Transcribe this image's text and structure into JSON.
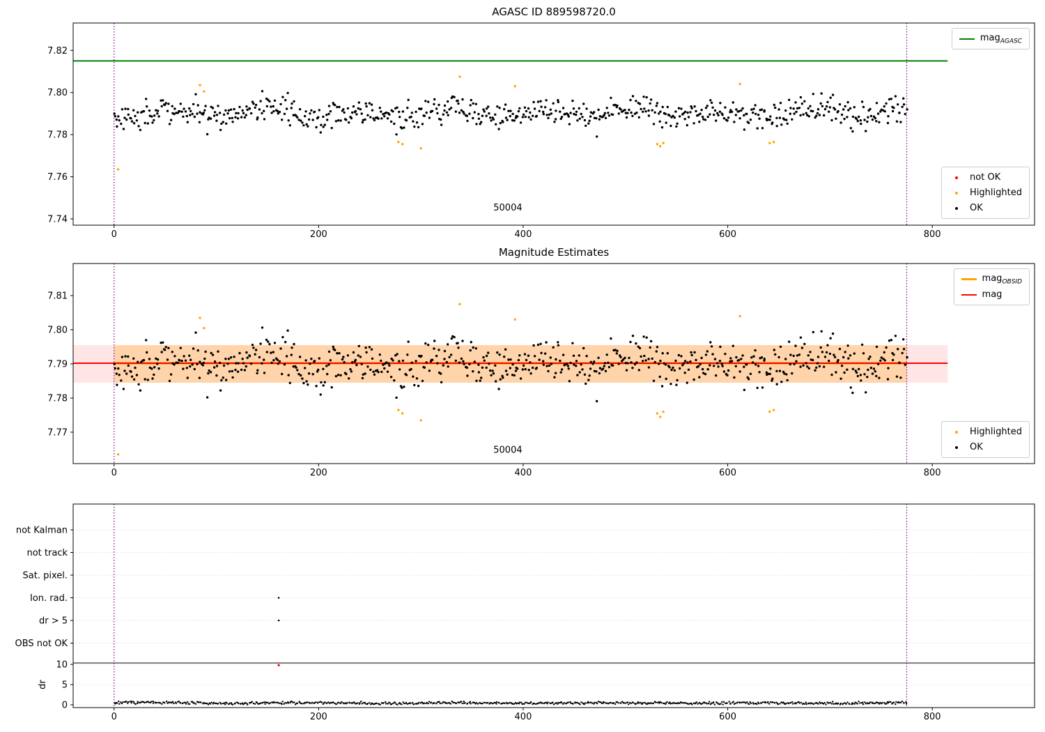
{
  "figure_title": "AGASC ID 889598720.0",
  "chart_data": [
    {
      "id": "agasc-mag",
      "type": "scatter",
      "title": "AGASC ID 889598720.0",
      "xlim": [
        -40,
        900
      ],
      "xticks": [
        0,
        200,
        400,
        600,
        800
      ],
      "ylim": [
        7.737,
        7.833
      ],
      "yticks": [
        7.74,
        7.76,
        7.78,
        7.8,
        7.82
      ],
      "ytick_labels": [
        "7.74",
        "7.76",
        "7.78",
        "7.80",
        "7.82"
      ],
      "annotation": {
        "text": "50004",
        "x": 385,
        "y": 7.744
      },
      "hlines": [
        {
          "name": "mag-agasc",
          "value": 7.815,
          "color": "#008000",
          "width": 2,
          "x_span": [
            -40,
            815
          ]
        }
      ],
      "vlines": {
        "xs": [
          0,
          775
        ],
        "color": "#800080"
      },
      "series": [
        {
          "name": "OK",
          "marker": "dot",
          "color": "#000000",
          "gen": {
            "n": 700,
            "x0": 0,
            "x1": 775,
            "mean": 7.7902,
            "noise": 0.0032,
            "wave_amp": 0.0018,
            "wave_period": 90,
            "seed": 42,
            "clamp": 0.017
          }
        },
        {
          "name": "Highlighted",
          "marker": "dot",
          "color": "#ffa500",
          "points": [
            [
              4,
              7.7635
            ],
            [
              84,
              7.8035
            ],
            [
              88,
              7.8005
            ],
            [
              278,
              7.7765
            ],
            [
              282,
              7.7755
            ],
            [
              300,
              7.7735
            ],
            [
              338,
              7.8075
            ],
            [
              392,
              7.803
            ],
            [
              531,
              7.7755
            ],
            [
              534,
              7.7745
            ],
            [
              537,
              7.776
            ],
            [
              612,
              7.804
            ],
            [
              641,
              7.776
            ],
            [
              645,
              7.7765
            ]
          ]
        },
        {
          "name": "not OK",
          "marker": "dot",
          "color": "#ff0000",
          "points": []
        }
      ],
      "legend_top": [
        {
          "main": "mag",
          "sub": "AGASC",
          "marker": "line",
          "color": "#008000",
          "lw": 2
        }
      ],
      "legend_bottom": [
        {
          "main": "not OK",
          "marker": "dot",
          "color": "#ff0000"
        },
        {
          "main": "Highlighted",
          "marker": "dot",
          "color": "#ffa500"
        },
        {
          "main": "OK",
          "marker": "dot",
          "color": "#000000"
        }
      ]
    },
    {
      "id": "magnitude-estimates",
      "type": "scatter",
      "title": "Magnitude Estimates",
      "xlim": [
        -40,
        900
      ],
      "xticks": [
        0,
        200,
        400,
        600,
        800
      ],
      "ylim": [
        7.7608,
        7.8194
      ],
      "yticks": [
        7.77,
        7.78,
        7.79,
        7.8,
        7.81
      ],
      "ytick_labels": [
        "7.77",
        "7.78",
        "7.79",
        "7.80",
        "7.81"
      ],
      "annotation": {
        "text": "50004",
        "x": 385,
        "y": 7.764
      },
      "bands": [
        {
          "name": "mag-uncertainty-band",
          "y0": 7.7845,
          "y1": 7.7955,
          "color": "rgba(255,0,0,0.10)",
          "x_span": [
            -40,
            815
          ]
        },
        {
          "name": "obsid-uncertainty-band",
          "y0": 7.7845,
          "y1": 7.7955,
          "color": "rgba(255,165,0,0.25)",
          "x_span": [
            0,
            775
          ]
        }
      ],
      "hlines": [
        {
          "name": "mag-obsid",
          "value": 7.7902,
          "color": "#ffa500",
          "width": 3,
          "x_span": [
            0,
            775
          ]
        },
        {
          "name": "mag",
          "value": 7.7902,
          "color": "#ff0000",
          "width": 2,
          "x_span": [
            -40,
            815
          ]
        }
      ],
      "vlines": {
        "xs": [
          0,
          775
        ],
        "color": "#800080"
      },
      "series": [
        {
          "name": "OK",
          "marker": "dot",
          "color": "#000000",
          "gen": {
            "n": 700,
            "x0": 0,
            "x1": 775,
            "mean": 7.7902,
            "noise": 0.0032,
            "wave_amp": 0.0018,
            "wave_period": 90,
            "seed": 42,
            "clamp": 0.017
          }
        },
        {
          "name": "Highlighted",
          "marker": "dot",
          "color": "#ffa500",
          "points": [
            [
              4,
              7.7635
            ],
            [
              84,
              7.8035
            ],
            [
              88,
              7.8005
            ],
            [
              278,
              7.7765
            ],
            [
              282,
              7.7755
            ],
            [
              300,
              7.7735
            ],
            [
              338,
              7.8075
            ],
            [
              392,
              7.803
            ],
            [
              531,
              7.7755
            ],
            [
              534,
              7.7745
            ],
            [
              537,
              7.776
            ],
            [
              612,
              7.804
            ],
            [
              641,
              7.776
            ],
            [
              645,
              7.7765
            ]
          ]
        }
      ],
      "legend_top": [
        {
          "main": "mag",
          "sub": "OBSID",
          "marker": "line",
          "color": "#ffa500",
          "lw": 3
        },
        {
          "main": "mag",
          "sub": "",
          "marker": "line",
          "color": "#ff0000",
          "lw": 2
        }
      ],
      "legend_bottom": [
        {
          "main": "Highlighted",
          "marker": "dot",
          "color": "#ffa500"
        },
        {
          "main": "OK",
          "marker": "dot",
          "color": "#000000"
        }
      ]
    },
    {
      "id": "flags-and-dr",
      "type": "scatter",
      "xlim": [
        -40,
        900
      ],
      "xticks": [
        0,
        200,
        400,
        600,
        800
      ],
      "flag_categories": [
        "not Kalman",
        "not track",
        "Sat. pixel.",
        "Ion. rad.",
        "dr > 5",
        "OBS not OK"
      ],
      "dr_ticks": [
        10,
        5,
        0
      ],
      "dr_label": "dr",
      "separator_value": 10,
      "vlines": {
        "xs": [
          0,
          775
        ],
        "color": "#800080"
      },
      "flag_points": [
        {
          "category": "Ion. rad.",
          "x": 161,
          "color": "#000000"
        },
        {
          "category": "dr > 5",
          "x": 161,
          "color": "#000000"
        }
      ],
      "dr_outliers": [
        {
          "x": 161,
          "y": 9.8,
          "color": "#ff0000"
        }
      ],
      "dr_series": {
        "name": "dr",
        "color": "#000000",
        "gen": {
          "n": 700,
          "x0": 0,
          "x1": 775,
          "mean": 0.45,
          "noise": 0.16,
          "wave_amp": 0.08,
          "wave_period": 150,
          "seed": 7,
          "clamp": 0.4,
          "min": 0.05
        }
      }
    }
  ]
}
